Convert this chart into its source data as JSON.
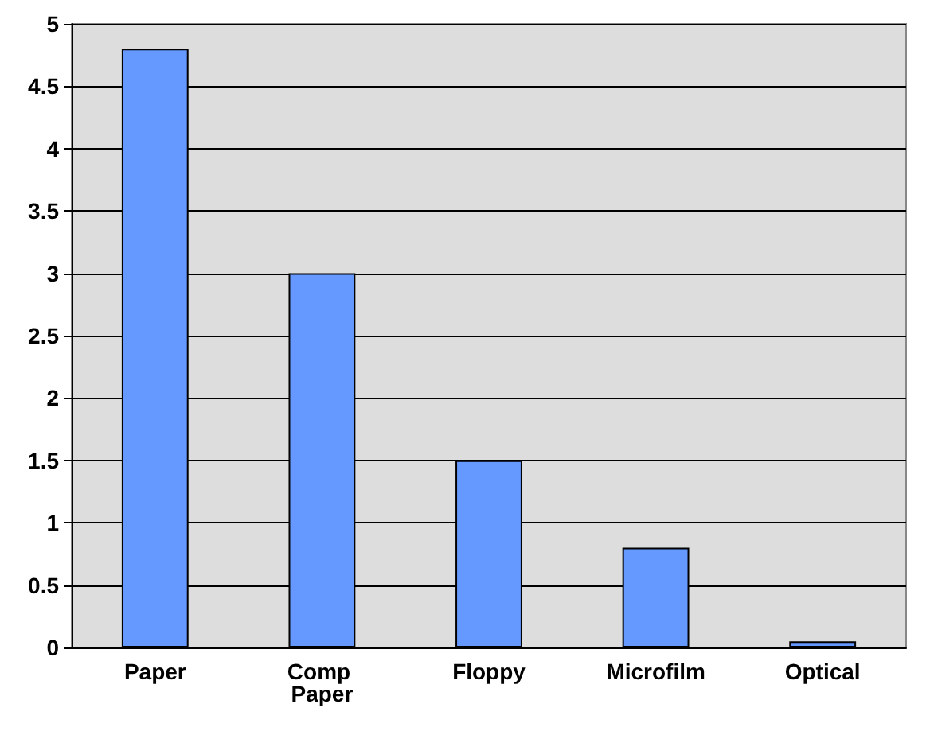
{
  "chart_data": {
    "type": "bar",
    "categories": [
      "Paper",
      "Comp Paper",
      "Floppy",
      "Microfilm",
      "Optical"
    ],
    "values": [
      4.8,
      3,
      1.5,
      0.8,
      0.05
    ],
    "color": "#6699ff",
    "ylim": [
      0,
      5
    ],
    "yticks": [
      0,
      0.5,
      1,
      1.5,
      2,
      2.5,
      3,
      3.5,
      4,
      4.5,
      5
    ],
    "grid": "y"
  }
}
